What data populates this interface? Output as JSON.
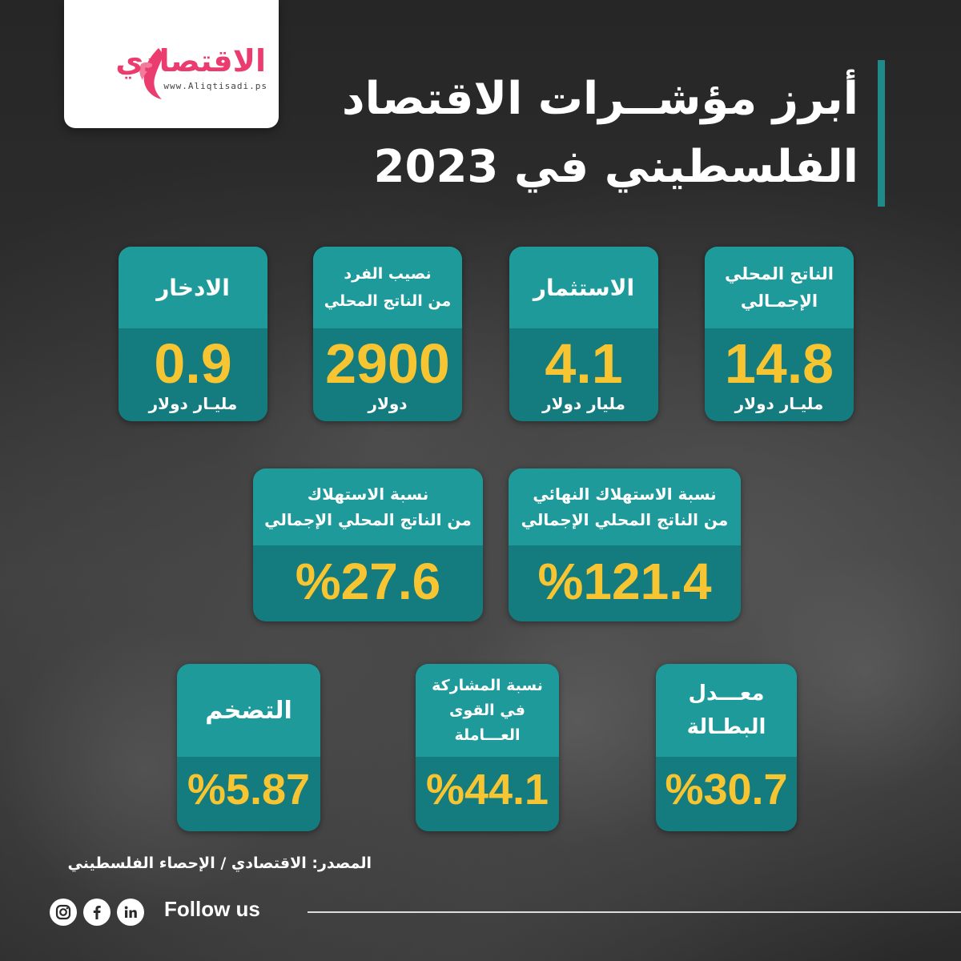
{
  "brand": {
    "name": "الاقتصادي",
    "url": "www.Aliqtisadi.ps",
    "accent": "#ea3c6e"
  },
  "title": {
    "line1": "أبرز مؤشــرات الاقتصاد",
    "line2": "الفلسطيني في 2023"
  },
  "colors": {
    "card_head": "#1f9a9b",
    "card_body": "#147b7e",
    "value": "#f7c531",
    "title_bar": "#1f8a8a"
  },
  "cards": {
    "gdp": {
      "label1": "الناتج المحلي",
      "label2": "الإجمـالي",
      "value": "14.8",
      "unit": "مليـار دولار"
    },
    "investment": {
      "label": "الاستثمار",
      "value": "4.1",
      "unit": "مليار دولار"
    },
    "per_capita": {
      "label1": "نصيب الفرد",
      "label2": "من الناتج المحلي",
      "value": "2900",
      "unit": "دولار"
    },
    "savings": {
      "label": "الادخار",
      "value": "0.9",
      "unit": "مليـار دولار"
    },
    "final_consumption": {
      "label1": "نسبة الاستهلاك النهائي",
      "label2": "من الناتج المحلي الإجمالي",
      "value": "%121.4"
    },
    "consumption": {
      "label1": "نسبة الاستهلاك",
      "label2": "من الناتج المحلي الإجمالي",
      "value": "%27.6"
    },
    "unemployment": {
      "label1": "معـــدل",
      "label2": "البطـالة",
      "value": "%30.7"
    },
    "participation": {
      "label1": "نسبة المشاركة",
      "label2": "في القوى",
      "label3": "العـــاملة",
      "value": "%44.1"
    },
    "inflation": {
      "label": "التضخم",
      "value": "%5.87"
    }
  },
  "footer": {
    "source": "المصدر: الاقتصادي / الإحصاء الفلسطيني",
    "follow": "Follow us",
    "icons": [
      "instagram-icon",
      "facebook-icon",
      "linkedin-icon"
    ]
  }
}
